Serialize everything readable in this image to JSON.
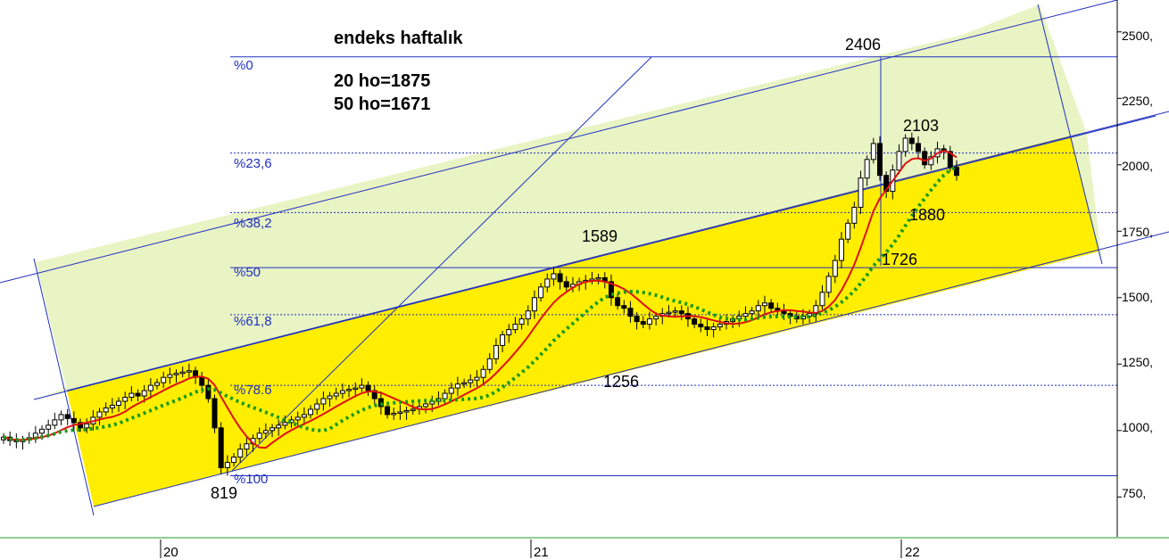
{
  "chart_data": {
    "type": "candlestick",
    "title": "endeks haftalık",
    "moving_averages": [
      {
        "label": "20 ho=1875",
        "period": 20,
        "value": 1875,
        "color": "#e01010",
        "style": "solid"
      },
      {
        "label": "50 ho=1671",
        "period": 50,
        "value": 1671,
        "color": "#1a9a1a",
        "style": "dotted"
      }
    ],
    "ylim": [
      600,
      2620
    ],
    "y_ticks": [
      "750,",
      "1000,",
      "1250,",
      "1500,",
      "1750,",
      "2000,",
      "2250,",
      "2500,"
    ],
    "x_ticks": [
      "20",
      "21",
      "22"
    ],
    "fibonacci_levels": [
      {
        "label": "%0",
        "value": 2406
      },
      {
        "label": "%23,6",
        "value": 2044
      },
      {
        "label": "%38,2",
        "value": 1820
      },
      {
        "label": "%50",
        "value": 1613
      },
      {
        "label": "%61,8",
        "value": 1436
      },
      {
        "label": "%78.6",
        "value": 1170
      },
      {
        "label": "%100",
        "value": 830
      }
    ],
    "point_labels": [
      {
        "text": "2406",
        "value": 2406
      },
      {
        "text": "2103",
        "value": 2103
      },
      {
        "text": "1880",
        "value": 1880
      },
      {
        "text": "1726",
        "value": 1726
      },
      {
        "text": "1589",
        "value": 1589
      },
      {
        "text": "1256",
        "value": 1256
      },
      {
        "text": "819",
        "value": 819
      }
    ],
    "channel_colors": {
      "upper_band": "#e8f4c4",
      "lower_band": "#ffee00",
      "lines": "#2030c0"
    },
    "weekly_close": [
      975,
      962,
      958,
      965,
      973,
      990,
      1005,
      1020,
      1040,
      1060,
      1045,
      1030,
      1010,
      1025,
      1050,
      1070,
      1085,
      1095,
      1110,
      1125,
      1140,
      1130,
      1150,
      1170,
      1180,
      1200,
      1210,
      1215,
      1220,
      1225,
      1200,
      1170,
      1120,
      1010,
      860,
      880,
      900,
      930,
      950,
      970,
      990,
      1000,
      1010,
      1020,
      1030,
      1040,
      1050,
      1060,
      1080,
      1100,
      1120,
      1130,
      1140,
      1150,
      1155,
      1160,
      1170,
      1150,
      1120,
      1090,
      1060,
      1065,
      1070,
      1075,
      1080,
      1090,
      1100,
      1110,
      1120,
      1140,
      1160,
      1175,
      1180,
      1190,
      1200,
      1230,
      1270,
      1320,
      1360,
      1380,
      1400,
      1420,
      1450,
      1500,
      1540,
      1570,
      1590,
      1560,
      1540,
      1550,
      1560,
      1565,
      1570,
      1575,
      1560,
      1500,
      1470,
      1460,
      1430,
      1410,
      1400,
      1420,
      1430,
      1440,
      1445,
      1450,
      1440,
      1420,
      1400,
      1390,
      1380,
      1390,
      1400,
      1410,
      1420,
      1430,
      1440,
      1450,
      1470,
      1480,
      1460,
      1450,
      1440,
      1430,
      1420,
      1430,
      1440,
      1470,
      1520,
      1580,
      1640,
      1720,
      1780,
      1840,
      1950,
      2020,
      2080,
      1960,
      1900,
      1980,
      2050,
      2100,
      2080,
      2050,
      2000,
      2030,
      2060,
      2050,
      1990,
      1960
    ]
  },
  "annotations": {
    "title": "endeks haftalık",
    "ma20": "20 ho=1875",
    "ma50": "50 ho=1671"
  }
}
